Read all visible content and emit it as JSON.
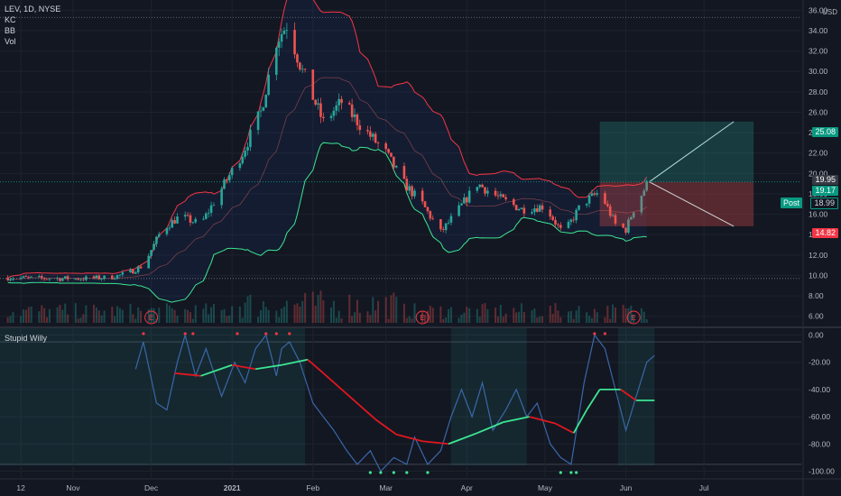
{
  "header": {
    "symbol_line": "LEV, 1D, NYSE",
    "studies": [
      "KC",
      "BB",
      "Vol"
    ],
    "currency": "USD"
  },
  "indicator": {
    "name": "Stupid Willy"
  },
  "colors": {
    "bg": "#131722",
    "grid": "#1e222d",
    "up": "#26a69a",
    "down": "#ef5350",
    "upper_band": "#f23645",
    "lower_band": "#3ce692",
    "osc": "#3a67a8",
    "target_zone": "#1b5e20",
    "stop_zone": "#7f1d1d"
  },
  "position": {
    "target_label": "25.08",
    "entry_label": "19.17",
    "current_label": "18.99",
    "stop_label": "14.82",
    "high_label": "19.95",
    "post_label": "Post"
  },
  "earnings_marker": "E",
  "chart_data": [
    {
      "type": "candlestick",
      "title": "LEV, 1D, NYSE",
      "x_ticks": [
        "12",
        "Nov",
        "Dec",
        "2021",
        "Feb",
        "Mar",
        "Apr",
        "May",
        "Jun",
        "Jul"
      ],
      "y_ticks": [
        6,
        8,
        10,
        12,
        14,
        16,
        18,
        20,
        22,
        24,
        26,
        28,
        30,
        32,
        34,
        36
      ],
      "y_tick_labels": [
        "6.00",
        "8.00",
        "10.00",
        "12.00",
        "14.00",
        "16.00",
        "18.00",
        "20.00",
        "22.00",
        "24.00",
        "26.00",
        "28.00",
        "30.00",
        "32.00",
        "34.00",
        "36.00"
      ],
      "ylim": [
        5,
        37
      ],
      "price_path": [
        [
          "2020-10-07",
          9.8
        ],
        [
          "2020-10-20",
          9.7
        ],
        [
          "2020-11-05",
          9.7
        ],
        [
          "2020-11-15",
          9.8
        ],
        [
          "2020-11-22",
          10.2
        ],
        [
          "2020-11-28",
          11.0
        ],
        [
          "2020-12-05",
          14.5
        ],
        [
          "2020-12-12",
          15.8
        ],
        [
          "2020-12-20",
          15.0
        ],
        [
          "2020-12-28",
          18.5
        ],
        [
          "2021-01-05",
          22.0
        ],
        [
          "2021-01-12",
          26.0
        ],
        [
          "2021-01-18",
          33.0
        ],
        [
          "2021-01-22",
          34.6
        ],
        [
          "2021-01-28",
          30.0
        ],
        [
          "2021-02-05",
          25.0
        ],
        [
          "2021-02-12",
          27.0
        ],
        [
          "2021-02-20",
          24.5
        ],
        [
          "2021-03-01",
          22.0
        ],
        [
          "2021-03-08",
          19.0
        ],
        [
          "2021-03-15",
          17.0
        ],
        [
          "2021-03-22",
          14.2
        ],
        [
          "2021-03-29",
          16.5
        ],
        [
          "2021-04-05",
          19.0
        ],
        [
          "2021-04-14",
          17.5
        ],
        [
          "2021-04-22",
          16.5
        ],
        [
          "2021-05-01",
          16.8
        ],
        [
          "2021-05-08",
          14.0
        ],
        [
          "2021-05-15",
          17.0
        ],
        [
          "2021-05-22",
          18.2
        ],
        [
          "2021-05-28",
          15.0
        ],
        [
          "2021-06-01",
          14.5
        ],
        [
          "2021-06-04",
          16.5
        ],
        [
          "2021-06-09",
          18.9
        ]
      ],
      "position_tool": {
        "entry": 19.17,
        "target": 25.08,
        "stop": 14.82,
        "start": "2021-05-22",
        "end": "2021-07-20"
      },
      "earnings_dates": [
        "2020-12-01",
        "2021-03-15",
        "2021-06-04"
      ]
    },
    {
      "type": "line",
      "title": "Stupid Willy",
      "y_ticks": [
        0,
        -20,
        -40,
        -60,
        -80,
        -100
      ],
      "y_tick_labels": [
        "0.00",
        "-20.00",
        "-40.00",
        "-60.00",
        "-80.00",
        "-100.00"
      ],
      "ylim": [
        -105,
        5
      ],
      "series": [
        {
          "key": "oscillator",
          "values": [
            [
              "2020-11-25",
              -25
            ],
            [
              "2020-11-28",
              -5
            ],
            [
              "2020-12-03",
              -50
            ],
            [
              "2020-12-07",
              -55
            ],
            [
              "2020-12-11",
              -20
            ],
            [
              "2020-12-14",
              0
            ],
            [
              "2020-12-18",
              -30
            ],
            [
              "2020-12-22",
              -10
            ],
            [
              "2020-12-28",
              -45
            ],
            [
              "2021-01-02",
              -20
            ],
            [
              "2021-01-06",
              -35
            ],
            [
              "2021-01-10",
              -10
            ],
            [
              "2021-01-14",
              0
            ],
            [
              "2021-01-18",
              -30
            ],
            [
              "2021-01-20",
              -10
            ],
            [
              "2021-01-23",
              -5
            ],
            [
              "2021-01-27",
              -20
            ],
            [
              "2021-02-01",
              -50
            ],
            [
              "2021-02-05",
              -60
            ],
            [
              "2021-02-09",
              -70
            ],
            [
              "2021-02-14",
              -85
            ],
            [
              "2021-02-18",
              -95
            ],
            [
              "2021-02-23",
              -85
            ],
            [
              "2021-02-27",
              -100
            ],
            [
              "2021-03-04",
              -90
            ],
            [
              "2021-03-09",
              -95
            ],
            [
              "2021-03-12",
              -75
            ],
            [
              "2021-03-17",
              -95
            ],
            [
              "2021-03-22",
              -85
            ],
            [
              "2021-03-26",
              -60
            ],
            [
              "2021-03-30",
              -40
            ],
            [
              "2021-04-03",
              -60
            ],
            [
              "2021-04-07",
              -35
            ],
            [
              "2021-04-11",
              -70
            ],
            [
              "2021-04-16",
              -55
            ],
            [
              "2021-04-20",
              -40
            ],
            [
              "2021-04-24",
              -60
            ],
            [
              "2021-04-28",
              -50
            ],
            [
              "2021-05-03",
              -80
            ],
            [
              "2021-05-07",
              -90
            ],
            [
              "2021-05-11",
              -95
            ],
            [
              "2021-05-16",
              -35
            ],
            [
              "2021-05-20",
              0
            ],
            [
              "2021-05-24",
              -10
            ],
            [
              "2021-05-28",
              -40
            ],
            [
              "2021-06-01",
              -70
            ],
            [
              "2021-06-05",
              -45
            ],
            [
              "2021-06-09",
              -20
            ],
            [
              "2021-06-12",
              -15
            ]
          ]
        },
        {
          "key": "signal",
          "values": [
            [
              "2020-12-10",
              -28
            ],
            [
              "2020-12-20",
              -30
            ],
            [
              "2021-01-01",
              -22
            ],
            [
              "2021-01-10",
              -25
            ],
            [
              "2021-01-20",
              -22
            ],
            [
              "2021-01-30",
              -18
            ],
            [
              "2021-02-05",
              -28
            ],
            [
              "2021-02-15",
              -45
            ],
            [
              "2021-02-25",
              -62
            ],
            [
              "2021-03-05",
              -73
            ],
            [
              "2021-03-15",
              -78
            ],
            [
              "2021-03-25",
              -80
            ],
            [
              "2021-04-05",
              -72
            ],
            [
              "2021-04-15",
              -64
            ],
            [
              "2021-04-25",
              -60
            ],
            [
              "2021-05-05",
              -65
            ],
            [
              "2021-05-12",
              -72
            ],
            [
              "2021-05-17",
              -55
            ],
            [
              "2021-05-22",
              -40
            ],
            [
              "2021-05-30",
              -40
            ],
            [
              "2021-06-05",
              -48
            ],
            [
              "2021-06-12",
              -48
            ]
          ]
        }
      ]
    }
  ]
}
